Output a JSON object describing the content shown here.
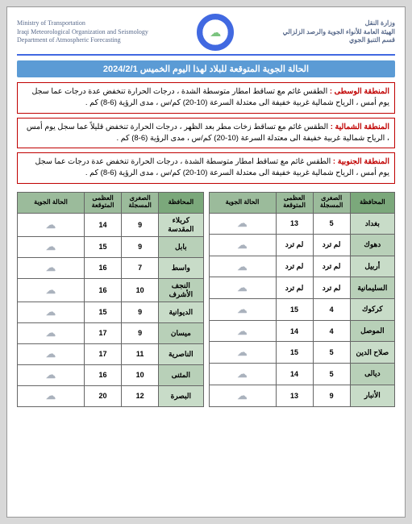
{
  "header": {
    "left_line1": "Ministry of Transportation",
    "left_line2": "Iraqi Meteorological Organization and Seismology",
    "left_line3": "Department of Atmospheric Forecasting",
    "right_line1": "وزارة النقل",
    "right_line2": "الهيئة العامة للأنواء الجوية والرصد الزلزالي",
    "right_line3": "قسم التنبؤ الجوي"
  },
  "title": "الحالة الجوية المتوقعة للبلاد لهذا اليوم الخميس  2024/2/1",
  "regions": [
    {
      "label": "المنطقة الوسطى :",
      "text": " الطقس غائم مع تساقط امطار متوسطة الشدة ، درجات الحرارة تنخفض عدة درجات عما سجل يوم أمس ، الرياح شمالية غربية خفيفة الى معتدلة السرعة (10-20) كم/س ، مدى الرؤية (6-8) كم ."
    },
    {
      "label": "المنطقة الشمالية :",
      "text": " الطقس غائم مع تساقط زخات مطر بعد الظهر ، درجات الحرارة تنخفض قليلاً عما سجل يوم أمس ، الرياح شمالية غربية خفيفة الى معتدلة السرعة (10-20) كم/س ، مدى الرؤية (6-8) كم ."
    },
    {
      "label": "المنطقة الجنوبية :",
      "text": " الطقس غائم مع تساقط امطار متوسطة الشدة ، درجات الحرارة تنخفض عدة درجات عما سجل يوم أمس ، الرياح شمالية غربية خفيفة الى معتدلة السرعة (10-20) كم/س ، مدى الرؤية (6-8) كم ."
    }
  ],
  "table_headers": {
    "gov": "المحافظة",
    "min": "الصغرى المسجلة",
    "max": "العظمى المتوقعة",
    "weather": "الحالة الجوية"
  },
  "table_right": [
    {
      "gov": "بغداد",
      "min": "5",
      "max": "13"
    },
    {
      "gov": "دهوك",
      "min": "لم ترد",
      "max": "لم ترد"
    },
    {
      "gov": "أربيل",
      "min": "لم ترد",
      "max": "لم ترد"
    },
    {
      "gov": "السليمانية",
      "min": "لم ترد",
      "max": "لم ترد"
    },
    {
      "gov": "كركوك",
      "min": "4",
      "max": "15"
    },
    {
      "gov": "الموصل",
      "min": "4",
      "max": "14"
    },
    {
      "gov": "صلاح الدين",
      "min": "5",
      "max": "15"
    },
    {
      "gov": "ديالى",
      "min": "5",
      "max": "14"
    },
    {
      "gov": "الأنبار",
      "min": "9",
      "max": "13"
    }
  ],
  "table_left": [
    {
      "gov": "كربلاء المقدسة",
      "min": "9",
      "max": "14"
    },
    {
      "gov": "بابل",
      "min": "9",
      "max": "15"
    },
    {
      "gov": "واسط",
      "min": "7",
      "max": "16"
    },
    {
      "gov": "النجف الأشرف",
      "min": "10",
      "max": "16"
    },
    {
      "gov": "الديوانية",
      "min": "9",
      "max": "15"
    },
    {
      "gov": "ميسان",
      "min": "9",
      "max": "17"
    },
    {
      "gov": "الناصرية",
      "min": "11",
      "max": "17"
    },
    {
      "gov": "المثنى",
      "min": "10",
      "max": "16"
    },
    {
      "gov": "البصرة",
      "min": "12",
      "max": "20"
    }
  ],
  "cloud_glyph": "☁"
}
